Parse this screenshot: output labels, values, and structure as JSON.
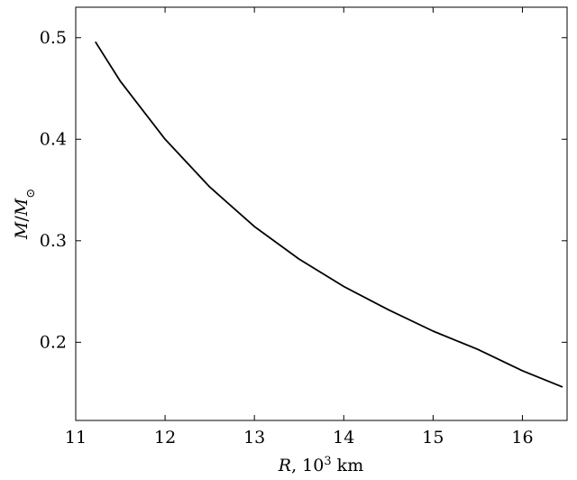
{
  "chart_data": {
    "type": "line",
    "title": "",
    "xlabel": {
      "var": "R",
      "rest_prefix": ", 10",
      "sup": "3",
      "rest_suffix": " km"
    },
    "ylabel": {
      "num": "M",
      "slash": "/",
      "den": "M",
      "den_sub": "⊙"
    },
    "xlim": [
      11.0,
      16.5
    ],
    "ylim": [
      0.123,
      0.53
    ],
    "xticks": [
      11,
      12,
      13,
      14,
      15,
      16
    ],
    "xtick_labels": [
      "11",
      "12",
      "13",
      "14",
      "15",
      "16"
    ],
    "yticks": [
      0.2,
      0.3,
      0.4,
      0.5
    ],
    "ytick_labels": [
      "0.2",
      "0.3",
      "0.4",
      "0.5"
    ],
    "grid": false,
    "series": [
      {
        "color": "#000000",
        "x": [
          11.22,
          11.5,
          12.0,
          12.5,
          13.0,
          13.5,
          14.0,
          14.5,
          15.0,
          15.5,
          16.0,
          16.45
        ],
        "y": [
          0.496,
          0.457,
          0.4,
          0.353,
          0.314,
          0.282,
          0.255,
          0.232,
          0.211,
          0.193,
          0.172,
          0.156
        ]
      }
    ]
  }
}
